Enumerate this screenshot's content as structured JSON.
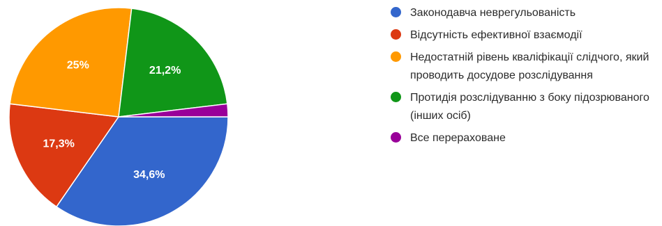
{
  "chart_data": {
    "type": "pie",
    "title": "",
    "legend_position": "right",
    "start_angle_deg": 0,
    "direction": "clockwise",
    "slices": [
      {
        "label": "Законодавча неврегульованість",
        "value": 34.6,
        "display": "34,6%",
        "color": "#3366cc"
      },
      {
        "label": "Відсутність ефективної взаємодії",
        "value": 17.3,
        "display": "17,3%",
        "color": "#dc3912"
      },
      {
        "label": "Недостатній рівень кваліфікації слідчого, який проводить досудове розслідування",
        "value": 25,
        "display": "25%",
        "color": "#ff9900"
      },
      {
        "label": "Протидія розслідуванню з боку підозрюваного (інших осіб)",
        "value": 21.2,
        "display": "21,2%",
        "color": "#109618"
      },
      {
        "label": "Все перераховане",
        "value": 1.9,
        "display": "",
        "color": "#990099"
      }
    ]
  }
}
